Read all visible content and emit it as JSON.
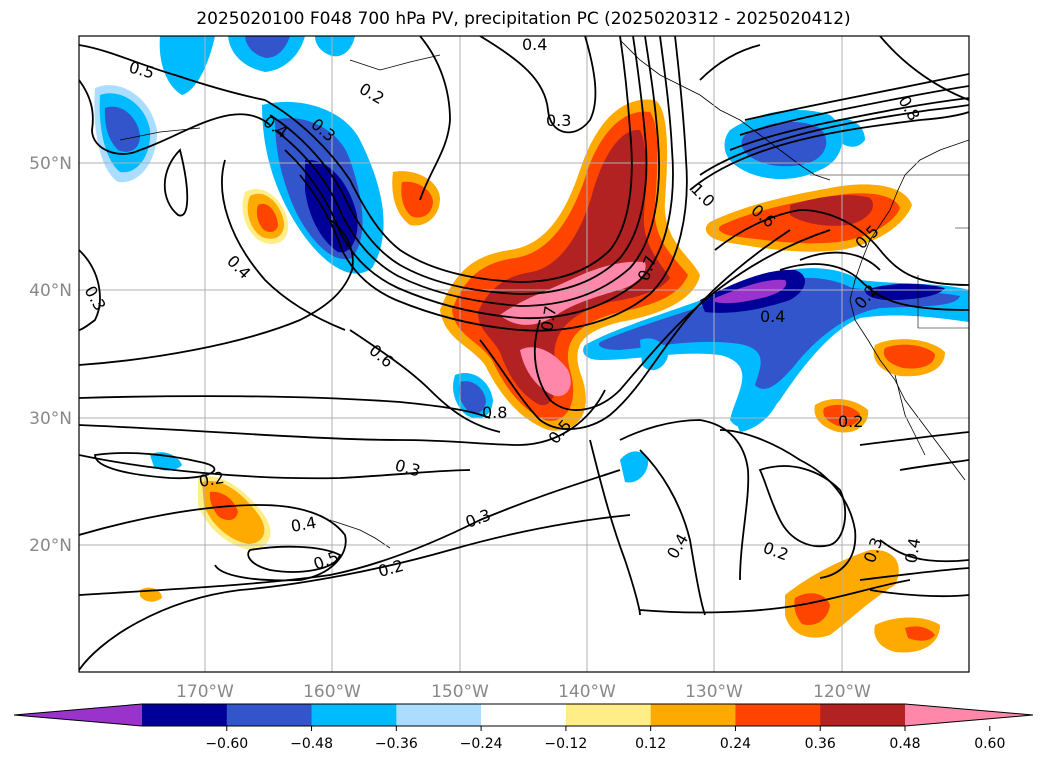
{
  "title": "2025020100 F048 700 hPa PV, precipitation PC (2025020312 - 2025020412)",
  "lat_labels": [
    "50°N",
    "40°N",
    "30°N",
    "20°N"
  ],
  "lon_labels": [
    "170°W",
    "160°W",
    "150°W",
    "140°W",
    "130°W",
    "120°W"
  ],
  "contour_labels": [
    "0.5",
    "0.2",
    "0.4",
    "0.3",
    "0.4",
    "0.3",
    "0.8",
    "0.6",
    "1.0",
    "0.5",
    "0.4",
    "0.3",
    "0.6",
    "0.8",
    "0.5",
    "0.7",
    "0.7",
    "0.4",
    "0.2",
    "0.2",
    "0.3",
    "0.2",
    "0.4",
    "0.5",
    "0.2",
    "0.3",
    "0.4",
    "0.2",
    "0.3",
    "0.4"
  ],
  "colorbar": {
    "colors": [
      "#9933cc",
      "#000099",
      "#3355cc",
      "#00bbff",
      "#aaddff",
      "#ffffff",
      "#ffee88",
      "#ffaa00",
      "#ff4400",
      "#b22222",
      "#ff88aa"
    ],
    "tick_labels": [
      "−0.60",
      "−0.48",
      "−0.36",
      "−0.24",
      "−0.12",
      "0.12",
      "0.24",
      "0.36",
      "0.48",
      "0.60"
    ]
  }
}
